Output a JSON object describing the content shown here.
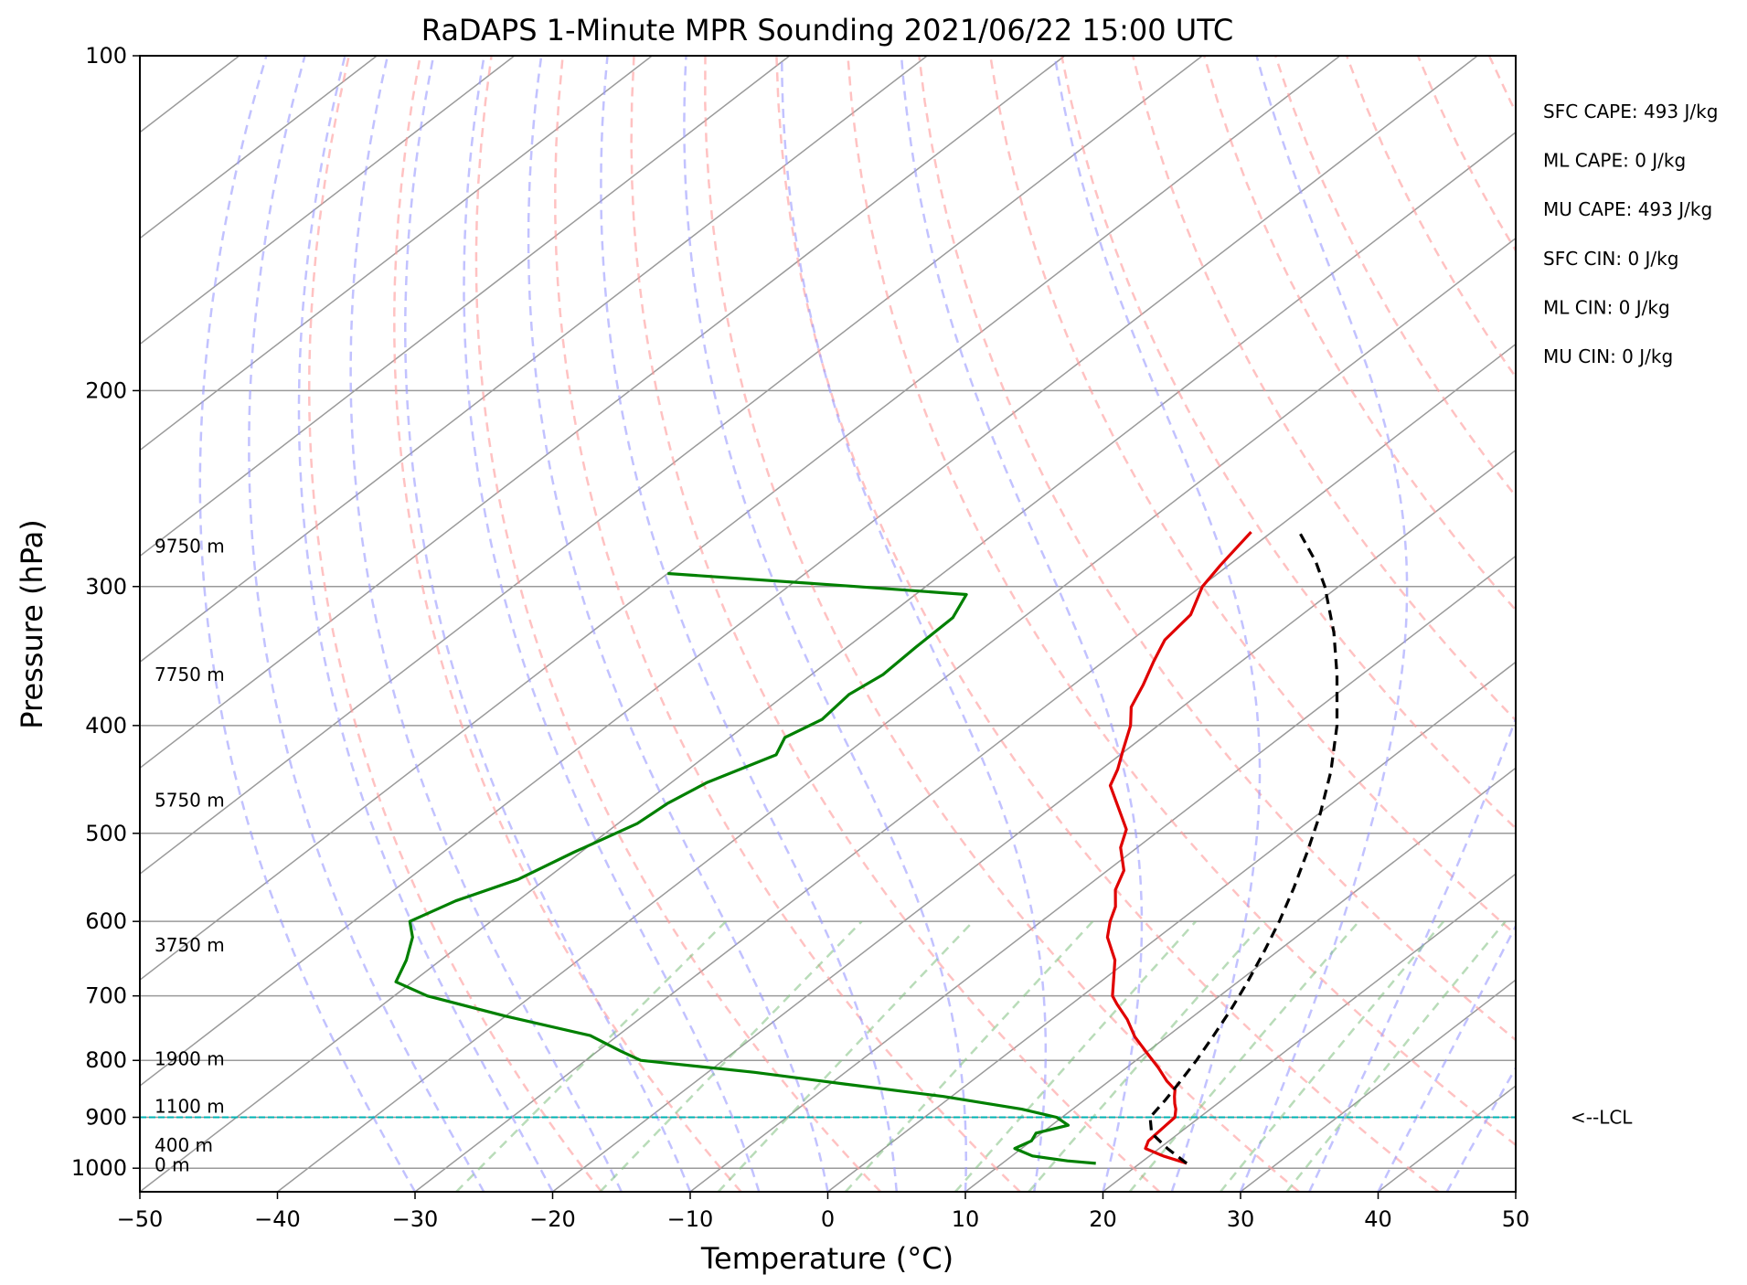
{
  "chart_data": {
    "type": "line",
    "title": "RaDAPS 1-Minute MPR Sounding 2021/06/22 15:00 UTC",
    "xlabel": "Temperature (°C)",
    "ylabel": "Pressure (hPa)",
    "xlim": [
      -50,
      50
    ],
    "ylim": [
      1050,
      100
    ],
    "y_scale": "log",
    "x_ticks": [
      -50,
      -40,
      -30,
      -20,
      -10,
      0,
      10,
      20,
      30,
      40,
      50
    ],
    "x_tick_labels": [
      "−50",
      "−40",
      "−30",
      "−20",
      "−10",
      "0",
      "10",
      "20",
      "30",
      "40",
      "50"
    ],
    "y_ticks": [
      100,
      200,
      300,
      400,
      500,
      600,
      700,
      800,
      900,
      1000
    ],
    "y_tick_labels": [
      "100",
      "200",
      "300",
      "400",
      "500",
      "600",
      "700",
      "800",
      "900",
      "1000"
    ],
    "grid": true,
    "skew_deg_per_decade": 105,
    "series": [
      {
        "color": "#e00000",
        "pressure": [
          990,
          975,
          960,
          945,
          930,
          915,
          900,
          885,
          875,
          862,
          850,
          835,
          812,
          790,
          762,
          735,
          712,
          700,
          676,
          650,
          620,
          600,
          582,
          562,
          540,
          515,
          496,
          472,
          453,
          438,
          420,
          400,
          385,
          368,
          350,
          335,
          318,
          300,
          287,
          268
        ],
        "temp": [
          23.4,
          21.0,
          19.0,
          18.5,
          18.4,
          18.3,
          18.2,
          17.5,
          16.9,
          16.2,
          15.6,
          14.2,
          12.3,
          10.3,
          7.7,
          5.5,
          3.3,
          2.2,
          0.7,
          -1.0,
          -3.7,
          -5.0,
          -6.0,
          -7.6,
          -8.8,
          -11.2,
          -12.5,
          -15.4,
          -17.8,
          -18.8,
          -20.3,
          -22.0,
          -23.7,
          -24.9,
          -26.4,
          -27.6,
          -28.1,
          -29.9,
          -30.6,
          -31.5
        ]
      },
      {
        "color": "#008000",
        "pressure": [
          990,
          985,
          975,
          960,
          945,
          930,
          915,
          900,
          885,
          862,
          840,
          820,
          800,
          785,
          760,
          730,
          700,
          680,
          650,
          620,
          600,
          575,
          550,
          520,
          490,
          470,
          450,
          425,
          410,
          395,
          375,
          360,
          340,
          320,
          305,
          300,
          292
        ],
        "temp": [
          16.8,
          14.5,
          11.5,
          9.5,
          10.0,
          9.6,
          11.2,
          9.6,
          6.3,
          -0.6,
          -9.0,
          -16.6,
          -26.0,
          -28.3,
          -32.0,
          -40.0,
          -47.6,
          -51.2,
          -52.5,
          -54.2,
          -55.9,
          -54.5,
          -52.0,
          -50.5,
          -48.6,
          -48.3,
          -47.4,
          -45.0,
          -46.0,
          -45.0,
          -45.4,
          -44.8,
          -45.0,
          -45.1,
          -46.3,
          -55.0,
          -70.0
        ]
      },
      {
        "color": "#000000",
        "pressure": [
          990,
          960,
          930,
          900,
          870,
          840,
          800,
          760,
          720,
          680,
          640,
          600,
          560,
          520,
          480,
          440,
          400,
          360,
          330,
          300,
          285,
          268
        ],
        "temp": [
          23.4,
          20.6,
          18.0,
          16.4,
          15.9,
          15.3,
          14.4,
          13.3,
          12.1,
          10.7,
          9.1,
          7.3,
          5.2,
          2.8,
          0.1,
          -3.1,
          -7.0,
          -11.8,
          -16.0,
          -21.0,
          -24.0,
          -28.0
        ]
      }
    ],
    "height_labels": [
      {
        "pressure": 993,
        "text": "0 m"
      },
      {
        "pressure": 953,
        "text": "400 m"
      },
      {
        "pressure": 880,
        "text": "1100 m"
      },
      {
        "pressure": 797,
        "text": "1900 m"
      },
      {
        "pressure": 630,
        "text": "3750 m"
      },
      {
        "pressure": 467,
        "text": "5750 m"
      },
      {
        "pressure": 360,
        "text": "7750 m"
      },
      {
        "pressure": 276,
        "text": "9750 m"
      }
    ],
    "lcl": {
      "pressure": 900,
      "label": "<--LCL",
      "color": "#00b3b3"
    },
    "indices": [
      "SFC CAPE: 493 J/kg",
      "ML CAPE: 0 J/kg",
      "MU CAPE: 493 J/kg",
      "SFC CIN: 0 J/kg",
      "ML CIN: 0 J/kg",
      "MU CIN: 0 J/kg"
    ],
    "reference_lines": {
      "dry_adiabats_color": "#ff9999",
      "moist_adiabats_color": "#9999ff",
      "mixing_ratio_color": "#7fbf7f",
      "isotherm_color": "#9a9a9a"
    }
  }
}
